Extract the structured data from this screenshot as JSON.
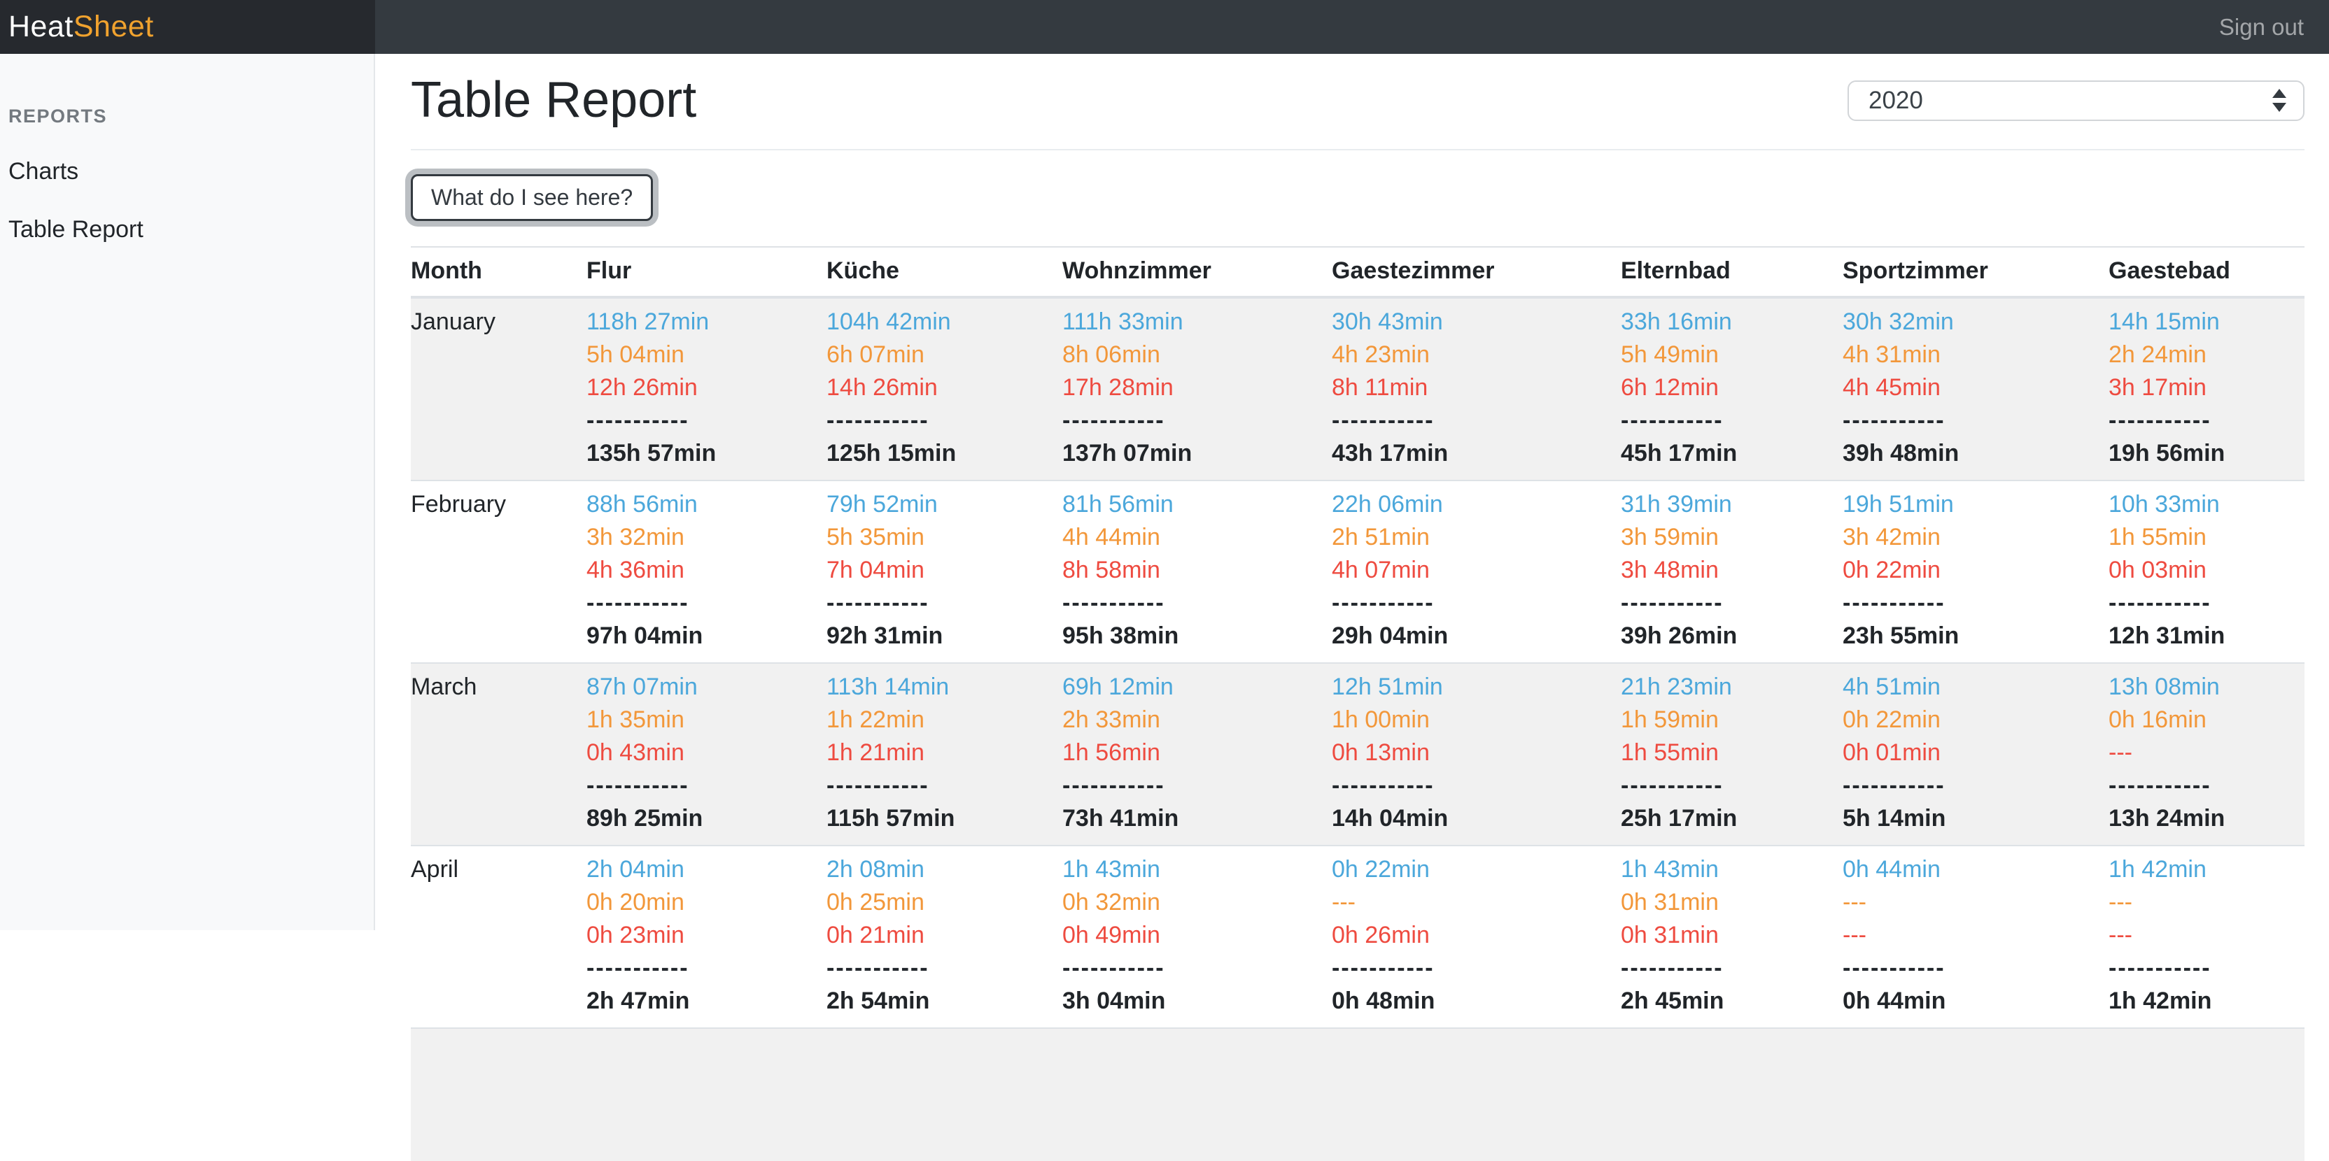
{
  "topbar": {
    "brand_heat": "Heat",
    "brand_sheet": "Sheet",
    "sign_out": "Sign out"
  },
  "sidebar": {
    "section_label": "REPORTS",
    "items": [
      {
        "label": "Charts"
      },
      {
        "label": "Table Report"
      }
    ]
  },
  "main": {
    "title": "Table Report",
    "year_select": {
      "value": "2020"
    },
    "info_button_label": "What do I see here?",
    "table": {
      "columns": [
        "Month",
        "Flur",
        "Küche",
        "Wohnzimmer",
        "Gaestezimmer",
        "Elternbad",
        "Sportzimmer",
        "Gaestebad"
      ],
      "separator": "-----------",
      "rows": [
        {
          "month": "January",
          "cells": [
            {
              "values": [
                "118h 27min",
                "5h 04min",
                "12h 26min"
              ],
              "total": "135h 57min"
            },
            {
              "values": [
                "104h 42min",
                "6h 07min",
                "14h 26min"
              ],
              "total": "125h 15min"
            },
            {
              "values": [
                "111h 33min",
                "8h 06min",
                "17h 28min"
              ],
              "total": "137h 07min"
            },
            {
              "values": [
                "30h 43min",
                "4h 23min",
                "8h 11min"
              ],
              "total": "43h 17min"
            },
            {
              "values": [
                "33h 16min",
                "5h 49min",
                "6h 12min"
              ],
              "total": "45h 17min"
            },
            {
              "values": [
                "30h 32min",
                "4h 31min",
                "4h 45min"
              ],
              "total": "39h 48min"
            },
            {
              "values": [
                "14h 15min",
                "2h 24min",
                "3h 17min"
              ],
              "total": "19h 56min"
            }
          ]
        },
        {
          "month": "February",
          "cells": [
            {
              "values": [
                "88h 56min",
                "3h 32min",
                "4h 36min"
              ],
              "total": "97h 04min"
            },
            {
              "values": [
                "79h 52min",
                "5h 35min",
                "7h 04min"
              ],
              "total": "92h 31min"
            },
            {
              "values": [
                "81h 56min",
                "4h 44min",
                "8h 58min"
              ],
              "total": "95h 38min"
            },
            {
              "values": [
                "22h 06min",
                "2h 51min",
                "4h 07min"
              ],
              "total": "29h 04min"
            },
            {
              "values": [
                "31h 39min",
                "3h 59min",
                "3h 48min"
              ],
              "total": "39h 26min"
            },
            {
              "values": [
                "19h 51min",
                "3h 42min",
                "0h 22min"
              ],
              "total": "23h 55min"
            },
            {
              "values": [
                "10h 33min",
                "1h 55min",
                "0h 03min"
              ],
              "total": "12h 31min"
            }
          ]
        },
        {
          "month": "March",
          "cells": [
            {
              "values": [
                "87h 07min",
                "1h 35min",
                "0h 43min"
              ],
              "total": "89h 25min"
            },
            {
              "values": [
                "113h 14min",
                "1h 22min",
                "1h 21min"
              ],
              "total": "115h 57min"
            },
            {
              "values": [
                "69h 12min",
                "2h 33min",
                "1h 56min"
              ],
              "total": "73h 41min"
            },
            {
              "values": [
                "12h 51min",
                "1h 00min",
                "0h 13min"
              ],
              "total": "14h 04min"
            },
            {
              "values": [
                "21h 23min",
                "1h 59min",
                "1h 55min"
              ],
              "total": "25h 17min"
            },
            {
              "values": [
                "4h 51min",
                "0h 22min",
                "0h 01min"
              ],
              "total": "5h 14min"
            },
            {
              "values": [
                "13h 08min",
                "0h 16min",
                "---"
              ],
              "total": "13h 24min"
            }
          ]
        },
        {
          "month": "April",
          "cells": [
            {
              "values": [
                "2h 04min",
                "0h 20min",
                "0h 23min"
              ],
              "total": "2h 47min"
            },
            {
              "values": [
                "2h 08min",
                "0h 25min",
                "0h 21min"
              ],
              "total": "2h 54min"
            },
            {
              "values": [
                "1h 43min",
                "0h 32min",
                "0h 49min"
              ],
              "total": "3h 04min"
            },
            {
              "values": [
                "0h 22min",
                "---",
                "0h 26min"
              ],
              "total": "0h 48min"
            },
            {
              "values": [
                "1h 43min",
                "0h 31min",
                "0h 31min"
              ],
              "total": "2h 45min"
            },
            {
              "values": [
                "0h 44min",
                "---",
                "---"
              ],
              "total": "0h 44min"
            },
            {
              "values": [
                "1h 42min",
                "---",
                "---"
              ],
              "total": "1h 42min"
            }
          ]
        },
        {
          "month": "",
          "partial": true,
          "cells": [
            {
              "values": [],
              "total": ""
            },
            {
              "values": [],
              "total": ""
            },
            {
              "values": [],
              "total": ""
            },
            {
              "values": [],
              "total": ""
            },
            {
              "values": [],
              "total": ""
            },
            {
              "values": [],
              "total": ""
            },
            {
              "values": [],
              "total": ""
            }
          ]
        }
      ]
    }
  },
  "colors": {
    "brand_orange": "#f0a22e",
    "value_blue": "#4ba7db",
    "value_orange": "#f2973a",
    "value_red": "#ee4b40"
  }
}
